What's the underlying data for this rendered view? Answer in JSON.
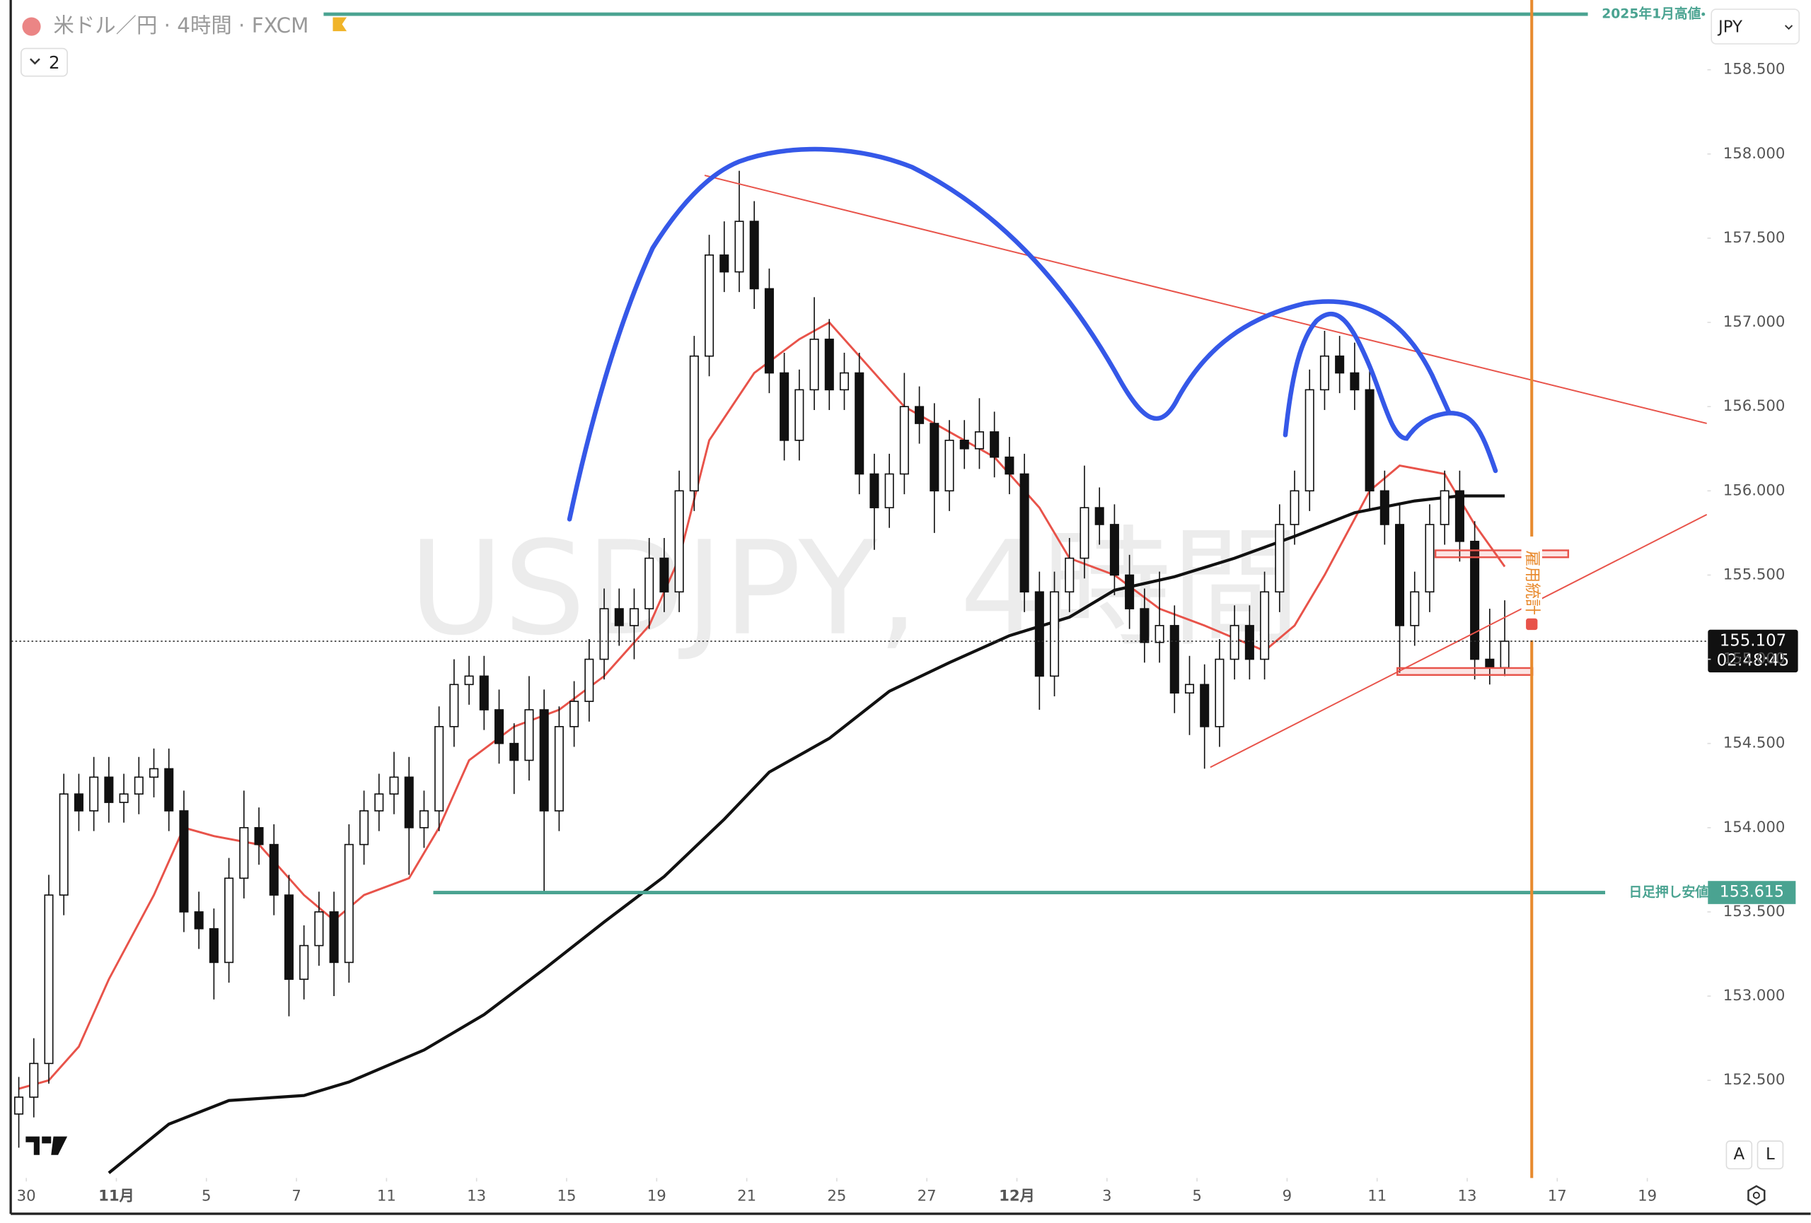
{
  "chart_data": {
    "type": "candlestick",
    "title": "米ドル／円 · 4時間 · FXCM",
    "watermark": "USDJPY, 4時間",
    "indicator_toggle": "2",
    "currency": "JPY",
    "buttons": [
      "A",
      "L"
    ],
    "last_price": 155.107,
    "countdown": "02:48:45",
    "xlim": [
      -0.5,
      112.5
    ],
    "ylim": [
      151.92,
      158.88
    ],
    "grid": false,
    "up_color": "#ffffff",
    "down_color": "#111111",
    "xticks": [
      {
        "value": 0.5,
        "label": "30"
      },
      {
        "value": 6.5,
        "label": "11月"
      },
      {
        "value": 12.5,
        "label": "5"
      },
      {
        "value": 18.5,
        "label": "7"
      },
      {
        "value": 24.5,
        "label": "11"
      },
      {
        "value": 30.5,
        "label": "13"
      },
      {
        "value": 36.5,
        "label": "15"
      },
      {
        "value": 42.5,
        "label": "19"
      },
      {
        "value": 48.5,
        "label": "21"
      },
      {
        "value": 54.5,
        "label": "25"
      },
      {
        "value": 60.5,
        "label": "27"
      },
      {
        "value": 66.5,
        "label": "12月"
      },
      {
        "value": 72.5,
        "label": "3"
      },
      {
        "value": 78.5,
        "label": "5"
      },
      {
        "value": 84.5,
        "label": "9"
      },
      {
        "value": 90.5,
        "label": "11"
      },
      {
        "value": 96.5,
        "label": "13"
      },
      {
        "value": 102.5,
        "label": "17"
      },
      {
        "value": 108.5,
        "label": "19"
      }
    ],
    "yticks": [
      {
        "value": 152.5,
        "label": "152.500"
      },
      {
        "value": 153,
        "label": "153.000"
      },
      {
        "value": 153.5,
        "label": "153.500"
      },
      {
        "value": 154,
        "label": "154.000"
      },
      {
        "value": 154.5,
        "label": "154.500"
      },
      {
        "value": 155,
        "label": "155.000"
      },
      {
        "value": 155.5,
        "label": "155.500"
      },
      {
        "value": 156,
        "label": "156.000"
      },
      {
        "value": 156.5,
        "label": "156.500"
      },
      {
        "value": 157,
        "label": "157.000"
      },
      {
        "value": 157.5,
        "label": "157.500"
      },
      {
        "value": 158,
        "label": "158.000"
      },
      {
        "value": 158.5,
        "label": "158.500"
      }
    ],
    "open": [
      152.3,
      152.4,
      152.6,
      153.6,
      154.2,
      154.1,
      154.3,
      154.15,
      154.2,
      154.3,
      154.35,
      154.1,
      153.5,
      153.4,
      153.2,
      153.7,
      154.0,
      153.9,
      153.6,
      153.1,
      153.3,
      153.5,
      153.2,
      153.9,
      154.1,
      154.2,
      154.3,
      154.0,
      154.1,
      154.6,
      154.85,
      154.9,
      154.7,
      154.5,
      154.4,
      154.7,
      154.1,
      154.6,
      154.75,
      155.0,
      155.3,
      155.2,
      155.3,
      155.6,
      155.4,
      156.0,
      156.8,
      157.4,
      157.3,
      157.6,
      157.2,
      156.7,
      156.3,
      156.6,
      156.9,
      156.6,
      156.7,
      156.1,
      155.9,
      156.1,
      156.5,
      156.4,
      156.0,
      156.3,
      156.25,
      156.35,
      156.2,
      156.1,
      155.4,
      154.9,
      155.4,
      155.6,
      155.9,
      155.8,
      155.5,
      155.3,
      155.1,
      155.2,
      154.8,
      154.85,
      154.6,
      155.0,
      155.2,
      155.0,
      155.4,
      155.8,
      156.0,
      156.6,
      156.8,
      156.7,
      156.6,
      156.0,
      155.8,
      155.2,
      155.4,
      155.8,
      156.0,
      155.7,
      155.0,
      154.95
    ],
    "high": [
      152.52,
      152.75,
      153.72,
      154.32,
      154.32,
      154.42,
      154.42,
      154.32,
      154.42,
      154.47,
      154.47,
      154.22,
      153.62,
      153.52,
      153.82,
      154.22,
      154.12,
      154.02,
      153.72,
      153.42,
      153.62,
      153.62,
      154.02,
      154.22,
      154.32,
      154.45,
      154.42,
      154.22,
      154.72,
      155.0,
      155.02,
      155.02,
      154.82,
      154.62,
      154.9,
      154.82,
      154.72,
      154.87,
      155.12,
      155.42,
      155.42,
      155.42,
      155.72,
      155.72,
      156.12,
      156.92,
      157.52,
      157.6,
      157.9,
      157.72,
      157.32,
      156.82,
      156.72,
      157.15,
      157.02,
      156.82,
      156.82,
      156.22,
      156.22,
      156.7,
      156.62,
      156.52,
      156.42,
      156.42,
      156.55,
      156.47,
      156.32,
      156.22,
      155.52,
      155.52,
      155.72,
      156.15,
      156.02,
      155.92,
      155.62,
      155.42,
      155.52,
      155.32,
      155.02,
      154.97,
      155.12,
      155.32,
      155.32,
      155.52,
      155.92,
      156.12,
      156.72,
      156.95,
      156.92,
      156.88,
      156.72,
      156.12,
      155.92,
      155.52,
      155.92,
      156.12,
      156.12,
      155.82,
      155.3,
      155.35
    ],
    "low": [
      152.1,
      152.28,
      152.48,
      153.48,
      153.98,
      153.98,
      154.03,
      154.03,
      154.08,
      154.18,
      153.98,
      153.38,
      153.28,
      152.98,
      153.08,
      153.58,
      153.78,
      153.48,
      152.88,
      152.98,
      153.18,
      153.0,
      153.08,
      153.78,
      153.98,
      154.08,
      153.72,
      153.88,
      153.98,
      154.48,
      154.73,
      154.58,
      154.38,
      154.2,
      154.28,
      153.61,
      153.98,
      154.48,
      154.63,
      154.88,
      155.08,
      155.0,
      155.18,
      155.28,
      155.28,
      155.88,
      156.68,
      157.18,
      157.18,
      157.08,
      156.58,
      156.18,
      156.18,
      156.48,
      156.48,
      156.48,
      155.98,
      155.65,
      155.78,
      155.98,
      156.28,
      155.75,
      155.88,
      156.13,
      156.13,
      156.08,
      155.98,
      155.28,
      154.7,
      154.78,
      155.28,
      155.48,
      155.68,
      155.38,
      155.18,
      154.98,
      154.98,
      154.68,
      154.55,
      154.35,
      154.48,
      154.88,
      154.88,
      154.88,
      155.28,
      155.68,
      155.88,
      156.48,
      156.58,
      156.48,
      155.88,
      155.68,
      154.92,
      155.08,
      155.28,
      155.68,
      155.58,
      154.88,
      154.85,
      154.9
    ],
    "close": [
      152.4,
      152.6,
      153.6,
      154.2,
      154.1,
      154.3,
      154.15,
      154.2,
      154.3,
      154.35,
      154.1,
      153.5,
      153.4,
      153.2,
      153.7,
      154.0,
      153.9,
      153.6,
      153.1,
      153.3,
      153.5,
      153.2,
      153.9,
      154.1,
      154.2,
      154.3,
      154.0,
      154.1,
      154.6,
      154.85,
      154.9,
      154.7,
      154.5,
      154.4,
      154.7,
      154.1,
      154.6,
      154.75,
      155.0,
      155.3,
      155.2,
      155.3,
      155.6,
      155.4,
      156.0,
      156.8,
      157.4,
      157.3,
      157.6,
      157.2,
      156.7,
      156.3,
      156.6,
      156.9,
      156.6,
      156.7,
      156.1,
      155.9,
      156.1,
      156.5,
      156.4,
      156.0,
      156.3,
      156.25,
      156.35,
      156.2,
      156.1,
      155.4,
      154.9,
      155.4,
      155.6,
      155.9,
      155.8,
      155.5,
      155.3,
      155.1,
      155.2,
      154.8,
      154.85,
      154.6,
      155.0,
      155.2,
      155.0,
      155.4,
      155.8,
      156.0,
      156.6,
      156.8,
      156.7,
      156.6,
      156.0,
      155.8,
      155.2,
      155.4,
      155.8,
      156.0,
      155.7,
      155.0,
      154.95,
      155.107
    ],
    "moving_averages": [
      {
        "color": "#e8534a",
        "x": [
          0,
          2,
          4,
          6,
          9,
          11,
          13,
          16,
          19,
          21,
          23,
          26,
          28,
          30,
          33,
          36,
          39,
          42,
          44,
          46,
          49,
          52,
          54,
          56,
          59,
          62,
          65,
          68,
          70,
          73,
          76,
          79,
          83,
          85,
          87,
          90,
          92,
          95,
          97,
          99
        ],
        "values": [
          152.45,
          152.5,
          152.7,
          153.1,
          153.6,
          154.0,
          153.95,
          153.9,
          153.6,
          153.45,
          153.6,
          153.7,
          154.0,
          154.4,
          154.6,
          154.7,
          154.9,
          155.2,
          155.6,
          156.3,
          156.7,
          156.9,
          157.0,
          156.8,
          156.5,
          156.35,
          156.2,
          155.9,
          155.6,
          155.5,
          155.3,
          155.2,
          155.05,
          155.2,
          155.5,
          156.0,
          156.15,
          156.1,
          155.8,
          155.55
        ]
      },
      {
        "color": "#111111",
        "x": [
          6,
          10,
          14,
          19,
          22,
          27,
          31,
          35,
          39,
          43,
          47,
          50,
          54,
          58,
          62,
          66,
          70,
          73,
          77,
          81,
          85,
          89,
          93,
          96,
          99
        ],
        "values": [
          151.95,
          152.24,
          152.38,
          152.41,
          152.49,
          152.68,
          152.89,
          153.16,
          153.44,
          153.71,
          154.05,
          154.33,
          154.53,
          154.81,
          154.98,
          155.14,
          155.25,
          155.41,
          155.49,
          155.6,
          155.73,
          155.87,
          155.94,
          155.97,
          155.97
        ]
      }
    ],
    "horizontal_lines": [
      {
        "label": "2025年1月高値",
        "value": 158.83,
        "color": "#4aa391"
      },
      {
        "label": "日足押し安値",
        "value": 153.615,
        "color": "#4aa391"
      }
    ],
    "event": {
      "label": "雇用統計",
      "x": 100.8,
      "color": "#e88a2e"
    }
  }
}
